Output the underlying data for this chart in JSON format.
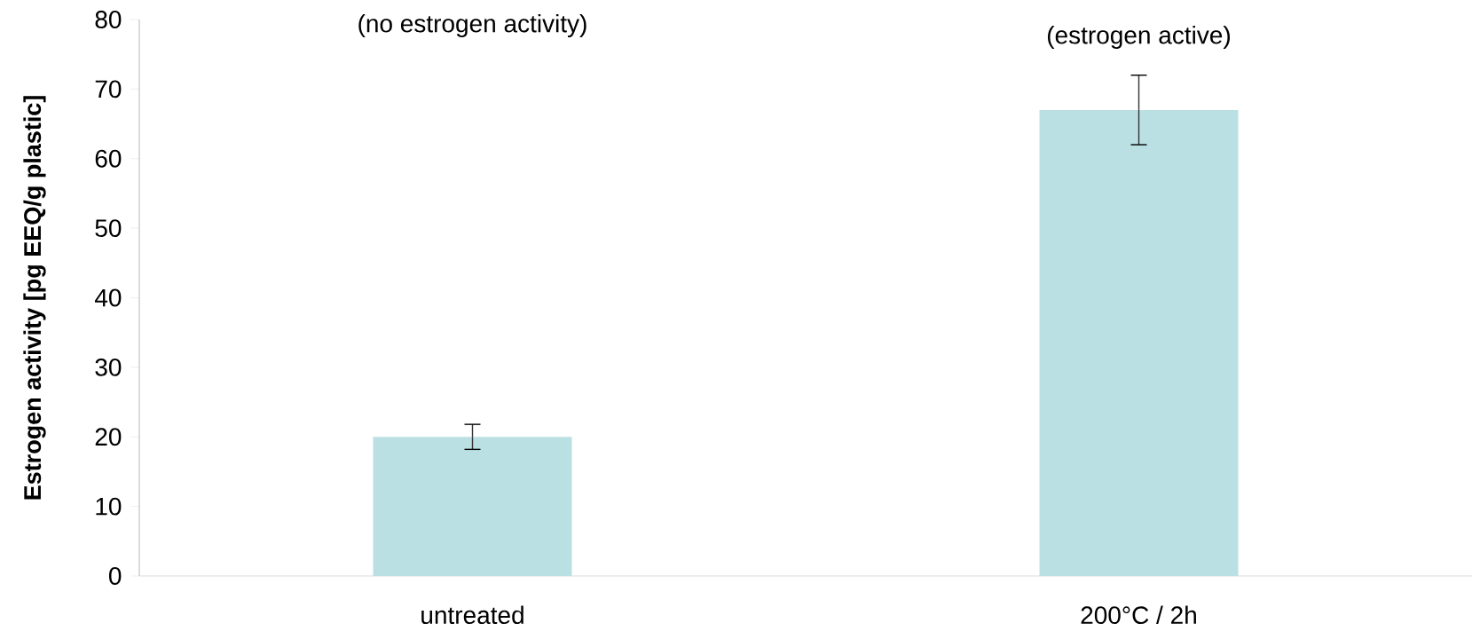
{
  "chart_data": {
    "type": "bar",
    "ylabel": "Estrogen activity [pg EEQ/g plastic]",
    "categories": [
      "untreated",
      "200°C / 2h"
    ],
    "values": [
      20,
      67
    ],
    "errors": [
      1.8,
      5
    ],
    "color": "#bbe0e3",
    "ylim": [
      0,
      80
    ],
    "yticks": [
      0,
      10,
      20,
      30,
      40,
      50,
      60,
      70,
      80
    ],
    "annotations": [
      "(no estrogen activity)",
      "(estrogen active)"
    ]
  }
}
